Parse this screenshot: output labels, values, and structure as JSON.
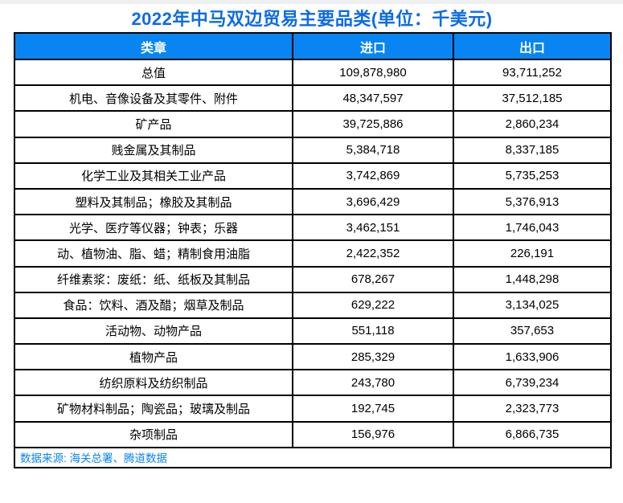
{
  "title": "2022年中马双边贸易主要品类(单位：千美元)",
  "table": {
    "headers": [
      "类章",
      "进口",
      "出口"
    ],
    "rows": [
      [
        "总值",
        "109,878,980",
        "93,711,252"
      ],
      [
        "机电、音像设备及其零件、附件",
        "48,347,597",
        "37,512,185"
      ],
      [
        "矿产品",
        "39,725,886",
        "2,860,234"
      ],
      [
        "贱金属及其制品",
        "5,384,718",
        "8,337,185"
      ],
      [
        "化学工业及其相关工业产品",
        "3,742,869",
        "5,735,253"
      ],
      [
        "塑料及其制品；橡胶及其制品",
        "3,696,429",
        "5,376,913"
      ],
      [
        "光学、医疗等仪器；钟表；乐器",
        "3,462,151",
        "1,746,043"
      ],
      [
        "动、植物油、脂、蜡；精制食用油脂",
        "2,422,352",
        "226,191"
      ],
      [
        "纤维素浆：废纸：纸、纸板及其制品",
        "678,267",
        "1,448,298"
      ],
      [
        "食品：饮料、酒及醋；烟草及制品",
        "629,222",
        "3,134,025"
      ],
      [
        "活动物、动物产品",
        "551,118",
        "357,653"
      ],
      [
        "植物产品",
        "285,329",
        "1,633,906"
      ],
      [
        "纺织原料及纺织制品",
        "243,780",
        "6,739,234"
      ],
      [
        "矿物材料制品；陶瓷品；玻璃及制品",
        "192,745",
        "2,323,773"
      ],
      [
        "杂项制品",
        "156,976",
        "6,866,735"
      ]
    ],
    "source_note": "数据来源: 海关总署、腾道数据"
  },
  "colors": {
    "title_text": "#0b6be8",
    "header_background": "#0885f2",
    "header_text": "#ffffff",
    "source_text": "#0885f2",
    "border": "#000000",
    "top_strip": "#eef0f1"
  },
  "chart_data": {
    "type": "table",
    "title": "2022年中马双边贸易主要品类(单位：千美元)",
    "unit": "千美元",
    "columns": [
      "类章",
      "进口",
      "出口"
    ],
    "categories": [
      "总值",
      "机电、音像设备及其零件、附件",
      "矿产品",
      "贱金属及其制品",
      "化学工业及其相关工业产品",
      "塑料及其制品；橡胶及其制品",
      "光学、医疗等仪器；钟表；乐器",
      "动、植物油、脂、蜡；精制食用油脂",
      "纤维素浆：废纸：纸、纸板及其制品",
      "食品：饮料、酒及醋；烟草及制品",
      "活动物、动物产品",
      "植物产品",
      "纺织原料及纺织制品",
      "矿物材料制品；陶瓷品；玻璃及制品",
      "杂项制品"
    ],
    "series": [
      {
        "name": "进口",
        "values": [
          109878980,
          48347597,
          39725886,
          5384718,
          3742869,
          3696429,
          3462151,
          2422352,
          678267,
          629222,
          551118,
          285329,
          243780,
          192745,
          156976
        ]
      },
      {
        "name": "出口",
        "values": [
          93711252,
          37512185,
          2860234,
          8337185,
          5735253,
          5376913,
          1746043,
          226191,
          1448298,
          3134025,
          357653,
          1633906,
          6739234,
          2323773,
          6866735
        ]
      }
    ],
    "source": "数据来源: 海关总署、腾道数据"
  }
}
